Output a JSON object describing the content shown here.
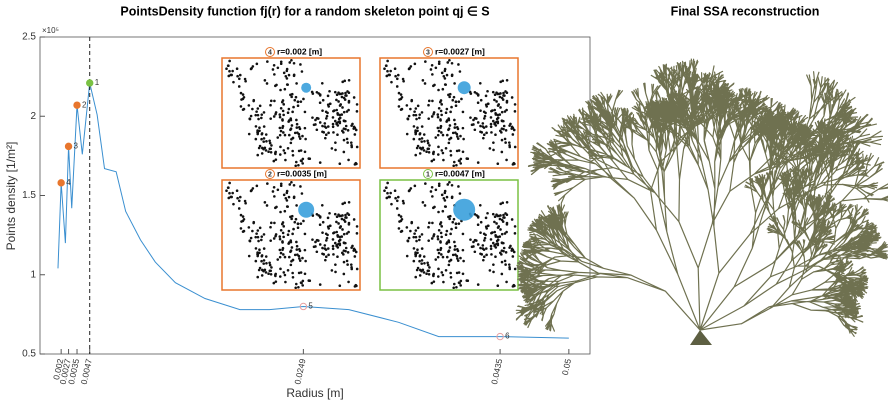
{
  "chart_data": {
    "type": "line",
    "title": "PointsDensity function fj(r) for a random skeleton point qj ∈ S",
    "x_label": "Radius [m]",
    "y_label": "Points density [1/m²]",
    "y_exponent": "×10⁵",
    "xlim": [
      0,
      0.052
    ],
    "ylim": [
      0.5,
      2.5
    ],
    "xticks": [
      0.002,
      0.0027,
      0.0035,
      0.0047,
      0.0249,
      0.0435,
      0.05
    ],
    "yticks": [
      0.5,
      1,
      1.5,
      2,
      2.5
    ],
    "color": "#3a8fd0",
    "x": [
      0.0017,
      0.002,
      0.0024,
      0.0027,
      0.003,
      0.0035,
      0.004,
      0.0047,
      0.0054,
      0.0061,
      0.0072,
      0.0081,
      0.0095,
      0.0109,
      0.0128,
      0.0156,
      0.0189,
      0.0217,
      0.0249,
      0.0292,
      0.0339,
      0.0377,
      0.0435,
      0.05
    ],
    "values": [
      1.04,
      1.58,
      1.2,
      1.81,
      1.42,
      2.07,
      1.76,
      2.21,
      2.01,
      1.67,
      1.65,
      1.4,
      1.22,
      1.08,
      0.95,
      0.85,
      0.78,
      0.78,
      0.8,
      0.78,
      0.7,
      0.61,
      0.61,
      0.6
    ],
    "highlights": [
      {
        "label": "1",
        "x": 0.0047,
        "y": 2.21,
        "color": "#7ac143",
        "marker": "filled"
      },
      {
        "label": "2",
        "x": 0.0035,
        "y": 2.07,
        "color": "#e8762d",
        "marker": "filled"
      },
      {
        "label": "3",
        "x": 0.0027,
        "y": 1.81,
        "color": "#e8762d",
        "marker": "filled"
      },
      {
        "label": "4",
        "x": 0.002,
        "y": 1.58,
        "color": "#e8762d",
        "marker": "filled"
      },
      {
        "label": "5",
        "x": 0.0249,
        "y": 0.8,
        "color": "#e8a0a0",
        "marker": "open"
      },
      {
        "label": "6",
        "x": 0.0435,
        "y": 0.61,
        "color": "#e8a0a0",
        "marker": "open"
      }
    ],
    "insets": [
      {
        "badge": "4",
        "title": "r=0.002 [m]",
        "color": "#e8762d"
      },
      {
        "badge": "3",
        "title": "r=0.0027 [m]",
        "color": "#e8762d"
      },
      {
        "badge": "2",
        "title": "r=0.0035 [m]",
        "color": "#e8762d"
      },
      {
        "badge": "1",
        "title": "r=0.0047 [m]",
        "color": "#7ac143"
      }
    ]
  },
  "reconstruction": {
    "title": "Final SSA reconstruction"
  }
}
